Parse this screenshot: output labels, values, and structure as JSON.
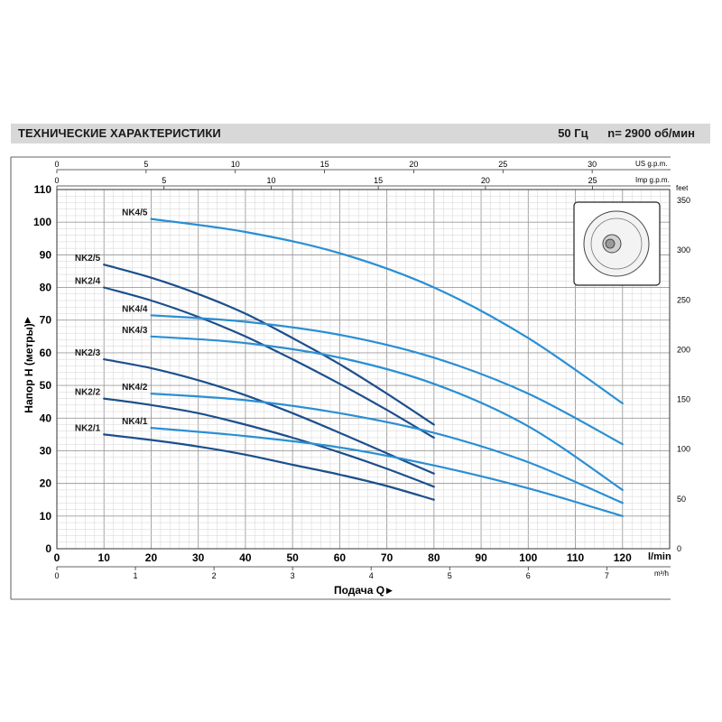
{
  "header": {
    "title": "ТЕХНИЧЕСКИЕ ХАРАКТЕРИСТИКИ",
    "frequency": "50 Гц",
    "speed": "n= 2900 об/мин"
  },
  "chart_data": {
    "type": "line",
    "title": "",
    "xlabel": "Подача Q",
    "ylabel": "Напор H (метры)",
    "x_unit": "l/min",
    "xlim": [
      0,
      130
    ],
    "ylim": [
      0,
      110
    ],
    "grid": true,
    "x_ticks": [
      0,
      10,
      20,
      30,
      40,
      50,
      60,
      70,
      80,
      90,
      100,
      110,
      120
    ],
    "y_ticks": [
      0,
      10,
      20,
      30,
      40,
      50,
      60,
      70,
      80,
      90,
      100,
      110
    ],
    "secondary_axes": {
      "bottom_m3h": {
        "unit": "m³/h",
        "ticks": [
          0,
          1,
          2,
          3,
          4,
          5,
          6,
          7
        ]
      },
      "top_us_gpm": {
        "unit": "US g.p.m.",
        "ticks": [
          0,
          5,
          10,
          15,
          20,
          25,
          30
        ]
      },
      "top_imp_gpm": {
        "unit": "Imp g.p.m.",
        "ticks": [
          0,
          5,
          10,
          15,
          20,
          25
        ]
      },
      "right_feet": {
        "unit": "feet",
        "ticks": [
          0,
          50,
          100,
          150,
          200,
          250,
          300,
          350
        ]
      }
    },
    "series": [
      {
        "name": "NK2/1",
        "color": "#1c4f8c",
        "x": [
          10,
          20,
          30,
          40,
          50,
          60,
          70,
          80
        ],
        "y": [
          35,
          33.3,
          31.3,
          28.8,
          25.7,
          22.7,
          19.2,
          15
        ]
      },
      {
        "name": "NK2/2",
        "color": "#1c4f8c",
        "x": [
          10,
          20,
          30,
          40,
          50,
          60,
          70,
          80
        ],
        "y": [
          46,
          44,
          41.5,
          38,
          34,
          29.5,
          24.5,
          19
        ]
      },
      {
        "name": "NK2/3",
        "color": "#1c4f8c",
        "x": [
          10,
          20,
          30,
          40,
          50,
          60,
          70,
          80
        ],
        "y": [
          58,
          55.3,
          51.6,
          47,
          41.5,
          35.5,
          29.2,
          23
        ]
      },
      {
        "name": "NK2/4",
        "color": "#1c4f8c",
        "x": [
          10,
          20,
          30,
          40,
          50,
          60,
          70,
          80
        ],
        "y": [
          80,
          76,
          71,
          65,
          58,
          50.5,
          42.5,
          34
        ]
      },
      {
        "name": "NK2/5",
        "color": "#1c4f8c",
        "x": [
          10,
          20,
          30,
          40,
          50,
          60,
          70,
          80
        ],
        "y": [
          87,
          83,
          78,
          72,
          64.5,
          56.5,
          47.5,
          38
        ]
      },
      {
        "name": "NK4/1",
        "color": "#2a8fd4",
        "x": [
          20,
          40,
          60,
          80,
          100,
          120
        ],
        "y": [
          37,
          34.5,
          31,
          25.5,
          18.5,
          10
        ]
      },
      {
        "name": "NK4/2",
        "color": "#2a8fd4",
        "x": [
          20,
          40,
          60,
          80,
          100,
          120
        ],
        "y": [
          47.5,
          45.5,
          41.5,
          35.5,
          26.5,
          14
        ]
      },
      {
        "name": "NK4/3",
        "color": "#2a8fd4",
        "x": [
          20,
          40,
          60,
          80,
          100,
          120
        ],
        "y": [
          65,
          63,
          58.5,
          50.5,
          37.5,
          18
        ]
      },
      {
        "name": "NK4/4",
        "color": "#2a8fd4",
        "x": [
          20,
          40,
          60,
          80,
          100,
          120
        ],
        "y": [
          71.5,
          69.5,
          65.5,
          58.5,
          47.5,
          32
        ]
      },
      {
        "name": "NK4/5",
        "color": "#2a8fd4",
        "x": [
          20,
          40,
          60,
          80,
          100,
          120
        ],
        "y": [
          101,
          97,
          90.5,
          80,
          64.5,
          44.5
        ]
      }
    ]
  }
}
